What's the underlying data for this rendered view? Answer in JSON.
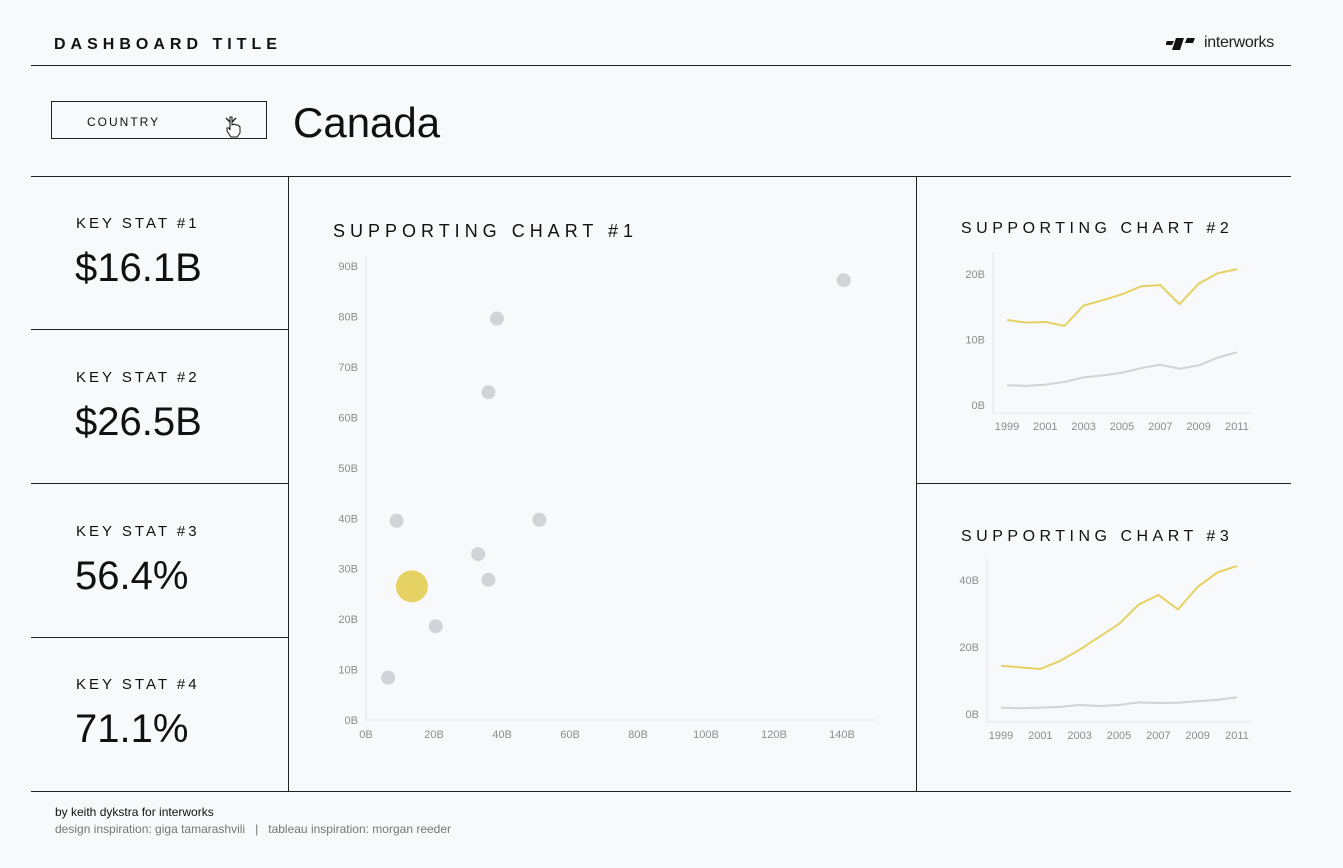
{
  "header": {
    "title": "DASHBOARD TITLE",
    "logo_text": "interworks"
  },
  "filter": {
    "label": "COUNTRY",
    "selected_value": "Canada"
  },
  "key_stats": [
    {
      "label": "KEY STAT #1",
      "value": "$16.1B"
    },
    {
      "label": "KEY STAT #2",
      "value": "$26.5B"
    },
    {
      "label": "KEY STAT #3",
      "value": "56.4%"
    },
    {
      "label": "KEY STAT #4",
      "value": "71.1%"
    }
  ],
  "charts": {
    "chart1_title": "SUPPORTING CHART #1",
    "chart2_title": "SUPPORTING CHART #2",
    "chart3_title": "SUPPORTING CHART #3"
  },
  "colors": {
    "highlight": "#e6d163",
    "other": "#d0d3d7",
    "axis_text": "#8a8d91",
    "line_rule": "#222222"
  },
  "chart_data": [
    {
      "type": "scatter",
      "title": "SUPPORTING CHART #1",
      "xlim": [
        0,
        150
      ],
      "ylim": [
        0,
        92
      ],
      "x_ticks": [
        0,
        20,
        40,
        60,
        80,
        100,
        120,
        140
      ],
      "x_tick_labels": [
        "0B",
        "20B",
        "40B",
        "60B",
        "80B",
        "100B",
        "120B",
        "140B"
      ],
      "y_ticks": [
        0,
        10,
        20,
        30,
        40,
        50,
        60,
        70,
        80,
        90
      ],
      "y_tick_labels": [
        "0B",
        "10B",
        "20B",
        "30B",
        "40B",
        "50B",
        "60B",
        "70B",
        "80B",
        "90B"
      ],
      "points": [
        {
          "x": 140.5,
          "y": 87.2,
          "highlight": false
        },
        {
          "x": 38.5,
          "y": 79.6,
          "highlight": false
        },
        {
          "x": 36,
          "y": 65,
          "highlight": false
        },
        {
          "x": 9,
          "y": 39.5,
          "highlight": false
        },
        {
          "x": 51,
          "y": 39.7,
          "highlight": false
        },
        {
          "x": 33,
          "y": 32.9,
          "highlight": false
        },
        {
          "x": 36,
          "y": 27.8,
          "highlight": false
        },
        {
          "x": 13.5,
          "y": 26.5,
          "highlight": true
        },
        {
          "x": 20.5,
          "y": 18.6,
          "highlight": false
        },
        {
          "x": 6.5,
          "y": 8.4,
          "highlight": false
        }
      ]
    },
    {
      "type": "line",
      "title": "SUPPORTING CHART #2",
      "x": [
        1999,
        2000,
        2001,
        2002,
        2003,
        2004,
        2005,
        2006,
        2007,
        2008,
        2009,
        2010,
        2011
      ],
      "x_tick_labels": [
        "1999",
        "2001",
        "2003",
        "2005",
        "2007",
        "2009",
        "2011"
      ],
      "y_tick_labels": [
        "0B",
        "10B",
        "20B"
      ],
      "ylim": [
        0,
        22
      ],
      "series": [
        {
          "values": [
            12.9,
            12.5,
            12.6,
            12.0,
            15.1,
            15.9,
            16.8,
            18.0,
            18.2,
            15.3,
            18.4,
            20.0,
            20.6
          ],
          "highlight": true
        },
        {
          "values": [
            3.0,
            2.9,
            3.1,
            3.5,
            4.2,
            4.5,
            4.9,
            5.6,
            6.1,
            5.5,
            6.0,
            7.2,
            8.0
          ],
          "highlight": false
        }
      ]
    },
    {
      "type": "line",
      "title": "SUPPORTING CHART #3",
      "x": [
        1999,
        2000,
        2001,
        2002,
        2003,
        2004,
        2005,
        2006,
        2007,
        2008,
        2009,
        2010,
        2011
      ],
      "x_tick_labels": [
        "1999",
        "2001",
        "2003",
        "2005",
        "2007",
        "2009",
        "2011"
      ],
      "y_tick_labels": [
        "0B",
        "20B",
        "40B"
      ],
      "ylim": [
        0,
        46
      ],
      "series": [
        {
          "values": [
            15.0,
            14.5,
            14.0,
            16.5,
            20.0,
            24.0,
            28.0,
            34.0,
            37.0,
            32.5,
            39.5,
            44.0,
            46.0
          ],
          "highlight": true
        },
        {
          "values": [
            2.0,
            1.8,
            2.0,
            2.2,
            2.8,
            2.5,
            2.8,
            3.6,
            3.4,
            3.5,
            4.0,
            4.4,
            5.2
          ],
          "highlight": false
        }
      ]
    }
  ],
  "footer": {
    "credit": "by keith dykstra for interworks",
    "design": "design inspiration: giga tamarashvili",
    "separator": "|",
    "tableau": "tableau inspiration: morgan reeder"
  }
}
